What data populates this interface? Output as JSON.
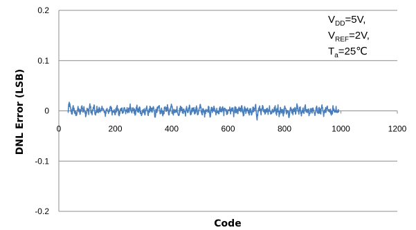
{
  "chart_data": {
    "type": "line",
    "xlabel": "Code",
    "ylabel": "DNL Error (LSB)",
    "xlim": [
      0,
      1200
    ],
    "ylim": [
      -0.2,
      0.2
    ],
    "x_ticks": [
      "0",
      "200",
      "400",
      "600",
      "800",
      "1000",
      "1200"
    ],
    "y_ticks": [
      "0.2",
      "0.1",
      "0",
      "-0.1",
      "-0.2"
    ],
    "grid": "horizontal",
    "line_color": "#4a7ebb",
    "annotation": {
      "line1": {
        "pre": "V",
        "sub": "DD",
        "post": "=5V,"
      },
      "line2": {
        "pre": "V",
        "sub": "REF",
        "post": "=2V,"
      },
      "line3": {
        "pre": "T",
        "sub": "a",
        "post": "=25℃"
      }
    },
    "series": [
      {
        "x_range": [
          32,
          992
        ],
        "typical_amplitude": 0.01,
        "peak_amplitude": 0.025,
        "values": [
          -0.007,
          0.022,
          0.003,
          -0.006,
          0.011,
          -0.004,
          -0.013,
          0.006,
          0.002,
          -0.009,
          0.015,
          -0.002,
          0.008,
          -0.011,
          0.004,
          -0.005,
          0.019,
          -0.008,
          0.001,
          0.012,
          -0.015,
          0.006,
          -0.003,
          0.009,
          -0.007,
          0.013,
          -0.001,
          -0.012,
          0.005,
          0.002,
          -0.006,
          0.014,
          -0.004,
          0.007,
          -0.01,
          0.003,
          0.009,
          -0.013,
          0.001,
          0.006,
          -0.005,
          0.011,
          -0.008,
          0.004,
          -0.002,
          0.016,
          -0.011,
          0.005,
          0.0,
          -0.007,
          0.01,
          -0.003,
          0.008,
          -0.014,
          0.004,
          0.002,
          -0.006,
          0.012,
          -0.009,
          0.003,
          0.007,
          -0.004,
          0.011,
          -0.016,
          0.005,
          0.001,
          0.009,
          -0.006,
          0.003,
          -0.011,
          0.006,
          0.0,
          0.013,
          -0.007,
          0.004,
          0.026,
          -0.01,
          0.005,
          -0.003,
          0.008,
          -0.012,
          0.002,
          0.01,
          -0.005,
          0.004,
          -0.009,
          0.007,
          -0.002,
          0.011,
          -0.015,
          0.003,
          0.006,
          -0.004,
          0.009,
          -0.008,
          0.002,
          0.014,
          -0.006,
          0.001,
          -0.01,
          0.007,
          -0.003,
          0.012,
          -0.013,
          0.005,
          0.0,
          0.008,
          -0.005,
          0.003,
          -0.011,
          0.009,
          -0.002,
          0.006,
          -0.007,
          0.013,
          -0.009,
          0.002,
          0.005,
          -0.004,
          0.01,
          -0.012,
          0.004,
          0.001,
          -0.006,
          0.008,
          -0.003,
          0.011,
          -0.014,
          0.005,
          -0.001,
          0.009,
          -0.007,
          0.003,
          -0.01,
          0.006,
          -0.002,
          0.012,
          -0.02,
          0.004,
          0.007,
          -0.005,
          0.01,
          -0.008,
          0.002,
          0.006,
          -0.004,
          0.011,
          -0.009,
          0.003,
          -0.001,
          0.008,
          -0.006,
          0.013,
          -0.011,
          0.004,
          0.001,
          -0.007,
          0.01,
          -0.003,
          0.006,
          -0.012,
          0.005,
          0.002,
          -0.005,
          0.009,
          -0.008,
          0.018,
          -0.004,
          0.007,
          -0.01,
          0.003,
          0.0,
          0.011,
          -0.006,
          0.004,
          -0.013,
          0.008,
          -0.002,
          0.006,
          -0.009,
          0.012,
          -0.003,
          0.005,
          -0.007,
          0.01,
          -0.011,
          0.003,
          0.001,
          0.008,
          -0.005,
          0.004,
          -0.012,
          0.009,
          -0.002,
          0.007,
          -0.008,
          0.003
        ]
      }
    ]
  }
}
